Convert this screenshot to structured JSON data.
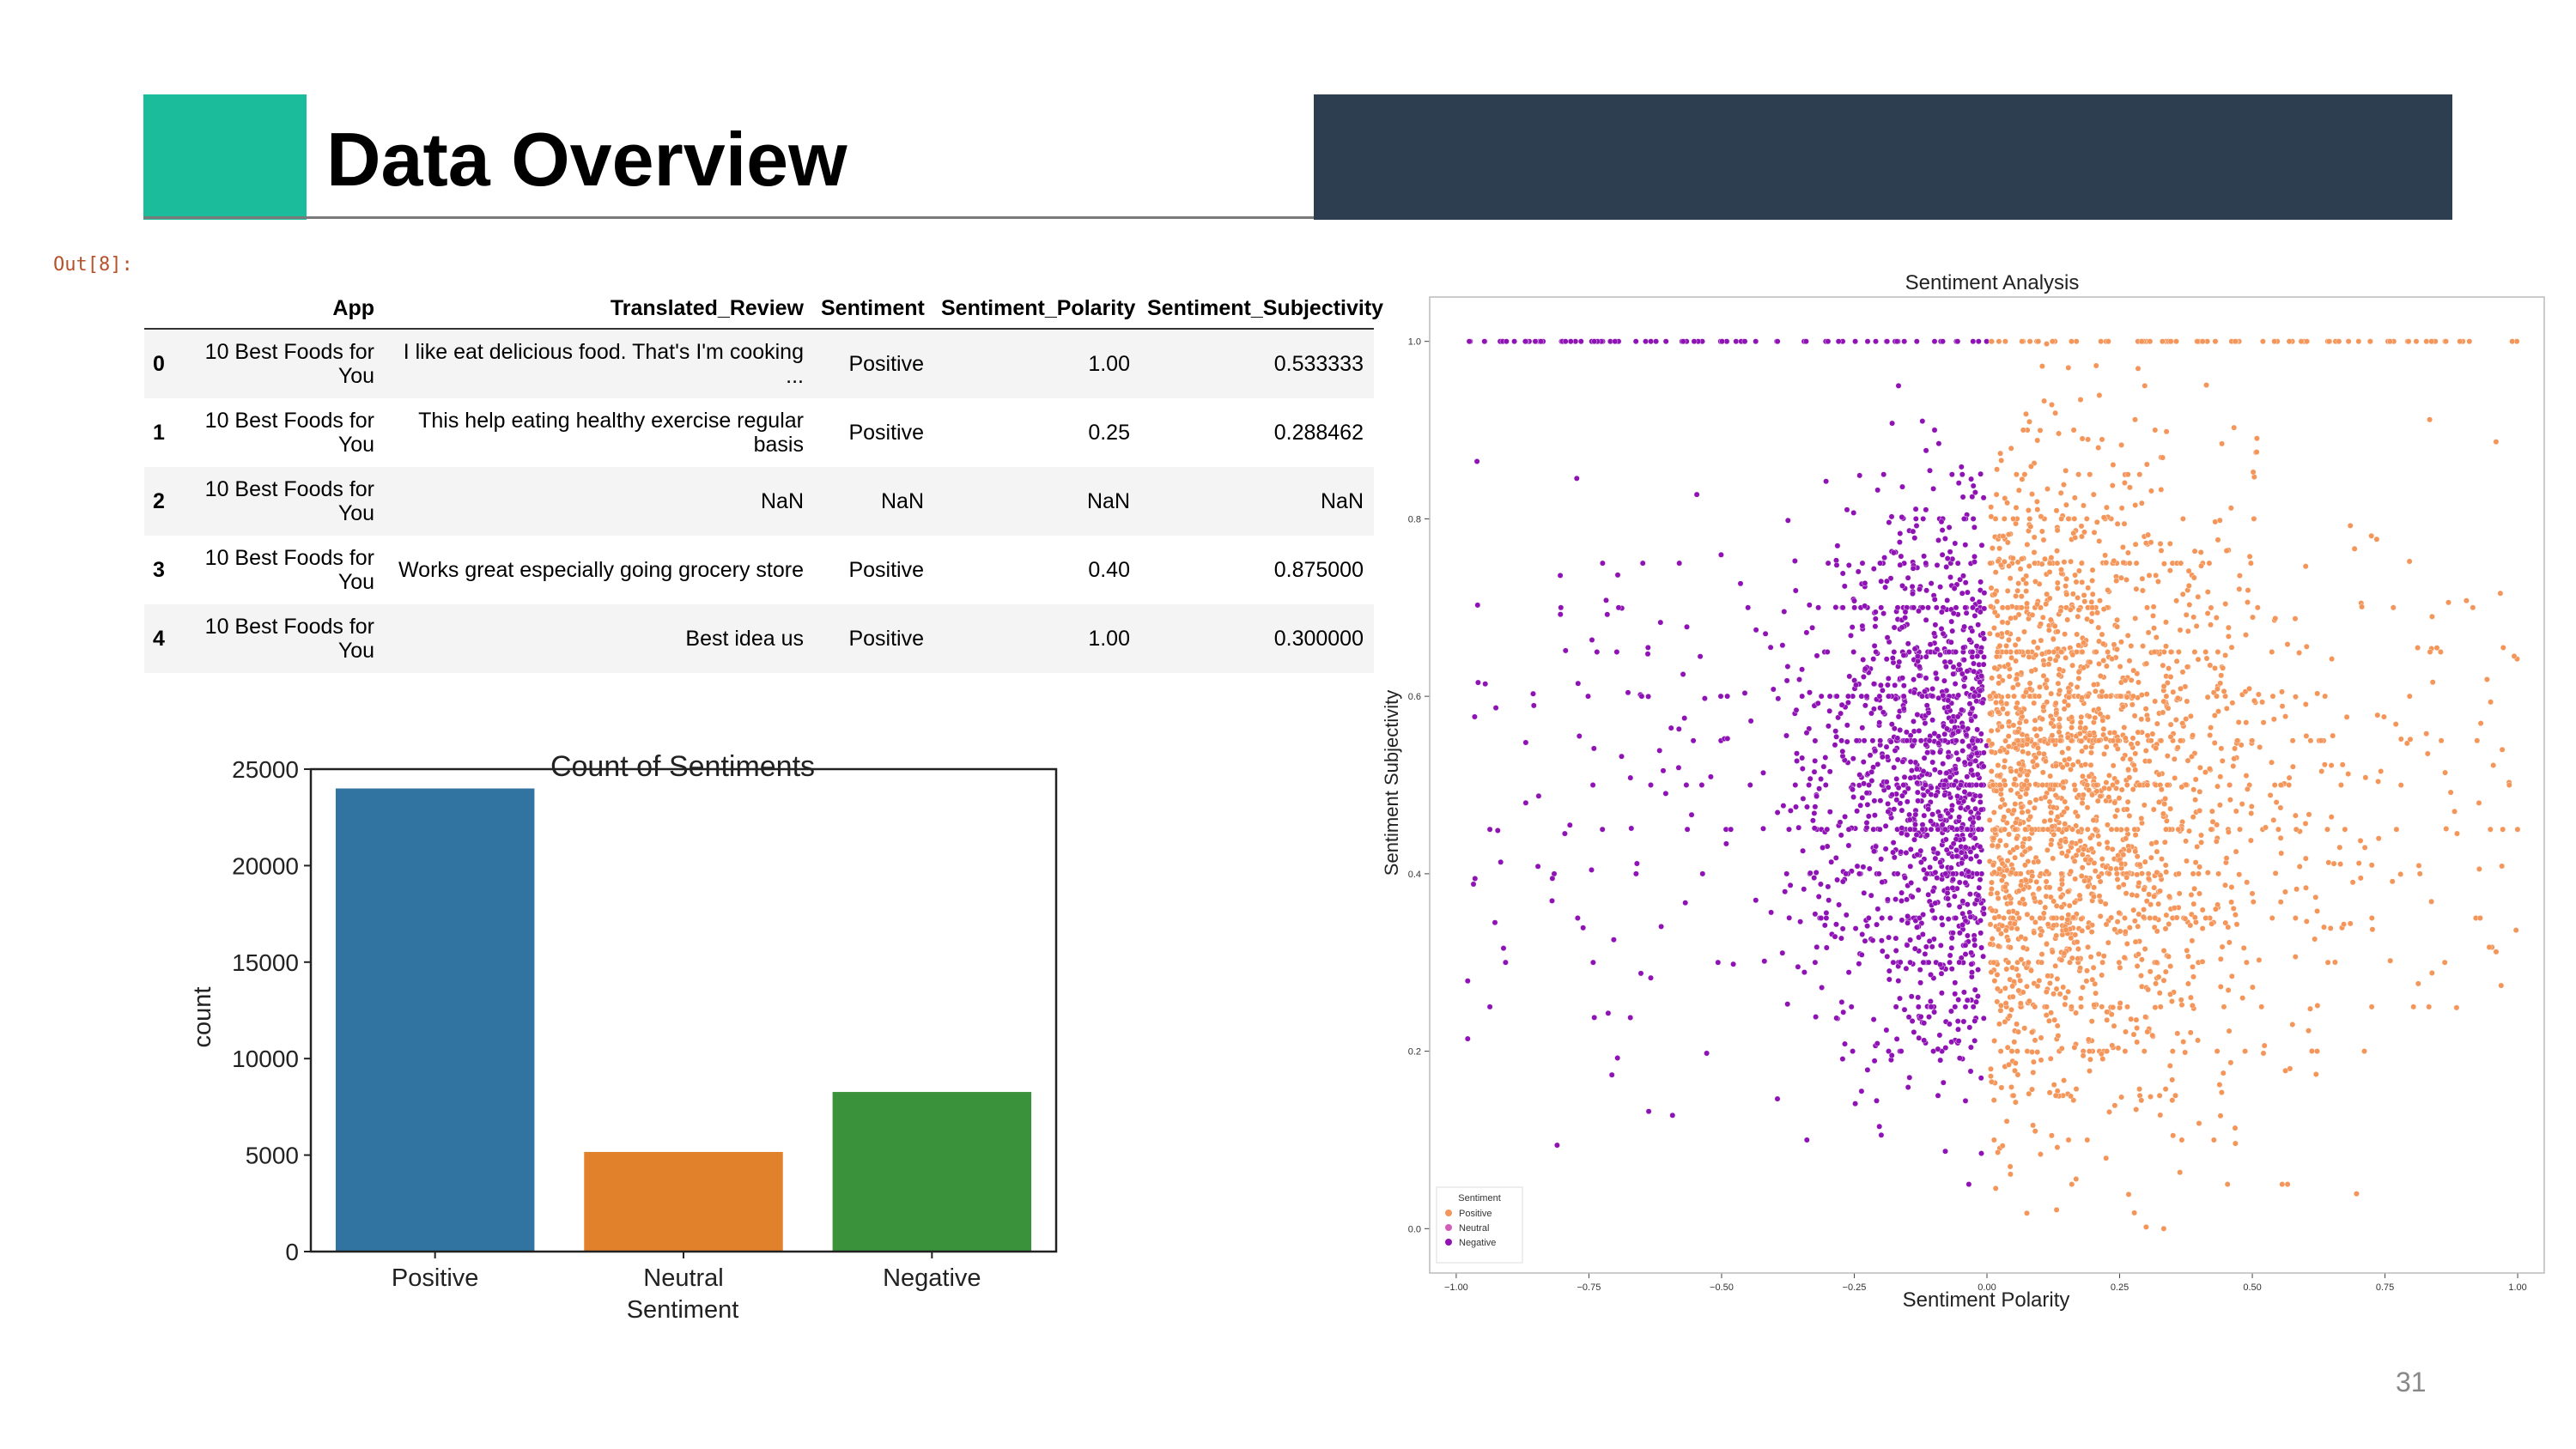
{
  "slide": {
    "title": "Data Overview",
    "page_number": "31",
    "accent_color": "#1abc9c",
    "dark_bar_color": "#2e3e51"
  },
  "notebook": {
    "out_label": "Out[8]:"
  },
  "table": {
    "columns": [
      "",
      "App",
      "Translated_Review",
      "Sentiment",
      "Sentiment_Polarity",
      "Sentiment_Subjectivity"
    ],
    "rows": [
      [
        "0",
        "10 Best Foods for You",
        "I like eat delicious food. That's I'm cooking ...",
        "Positive",
        "1.00",
        "0.533333"
      ],
      [
        "1",
        "10 Best Foods for You",
        "This help eating healthy exercise regular basis",
        "Positive",
        "0.25",
        "0.288462"
      ],
      [
        "2",
        "10 Best Foods for You",
        "NaN",
        "NaN",
        "NaN",
        "NaN"
      ],
      [
        "3",
        "10 Best Foods for You",
        "Works great especially going grocery store",
        "Positive",
        "0.40",
        "0.875000"
      ],
      [
        "4",
        "10 Best Foods for You",
        "Best idea us",
        "Positive",
        "1.00",
        "0.300000"
      ]
    ]
  },
  "chart_data": [
    {
      "type": "bar",
      "title": "Count of Sentiments",
      "xlabel": "Sentiment",
      "ylabel": "count",
      "categories": [
        "Positive",
        "Neutral",
        "Negative"
      ],
      "values": [
        23998,
        5163,
        8271
      ],
      "colors": [
        "#3274a1",
        "#e1812c",
        "#3a923a"
      ],
      "ylim": [
        0,
        25000
      ],
      "yticks": [
        0,
        5000,
        10000,
        15000,
        20000,
        25000
      ],
      "grid": false
    },
    {
      "type": "scatter",
      "title": "Sentiment Analysis",
      "xlabel": "Sentiment Polarity",
      "ylabel": "Sentiment Subjectivity",
      "xlim": [
        -1.05,
        1.05
      ],
      "ylim": [
        -0.05,
        1.05
      ],
      "xticks": [
        -1.0,
        -0.75,
        -0.5,
        -0.25,
        0.0,
        0.25,
        0.5,
        0.75,
        1.0
      ],
      "xtick_labels": [
        "−1.00",
        "−0.75",
        "−0.50",
        "−0.25",
        "0.00",
        "0.25",
        "0.50",
        "0.75",
        "1.00"
      ],
      "yticks": [
        0.0,
        0.2,
        0.4,
        0.6,
        0.8,
        1.0
      ],
      "ytick_labels": [
        "0.0",
        "0.2",
        "0.4",
        "0.6",
        "0.8",
        "1.0"
      ],
      "legend": {
        "title": "Sentiment",
        "placement": "lower-left",
        "entries": [
          "Positive",
          "Neutral",
          "Negative"
        ]
      },
      "series": [
        {
          "name": "Positive",
          "color": "#f4955a"
        },
        {
          "name": "Neutral",
          "color": "#d15fb8"
        },
        {
          "name": "Negative",
          "color": "#8f12b5"
        }
      ],
      "grid": false
    }
  ]
}
